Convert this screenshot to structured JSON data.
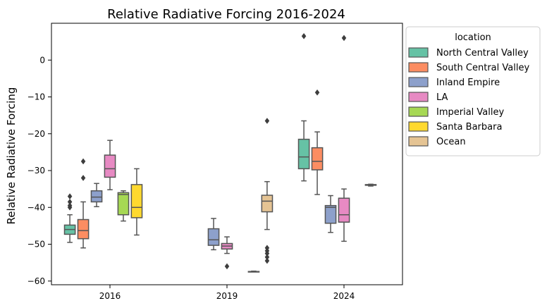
{
  "chart_data": {
    "type": "box",
    "title": "Relative Radiative Forcing 2016-2024",
    "xlabel": "",
    "ylabel": "Relative Radiative Forcing",
    "ylim": [
      -61,
      10
    ],
    "yticks": [
      0,
      -10,
      -20,
      -30,
      -40,
      -50,
      -60
    ],
    "ytick_labels": [
      "0",
      "−10",
      "−20",
      "−30",
      "−40",
      "−50",
      "−60"
    ],
    "categories": [
      "2016",
      "2019",
      "2024"
    ],
    "legend": {
      "title": "location",
      "placement": "outside-upper-right"
    },
    "series": [
      {
        "name": "North Central Valley",
        "color": "#66c2a5",
        "boxes": [
          {
            "category": "2016",
            "whislo": -49.5,
            "q1": -47.3,
            "med": -46.0,
            "q3": -44.8,
            "whishi": -42.0,
            "fliers": [
              -37.0,
              -38.5,
              -39.5,
              -40.0
            ]
          },
          null,
          {
            "category": "2024",
            "whislo": -32.8,
            "q1": -29.5,
            "med": -26.3,
            "q3": -21.5,
            "whishi": -16.5,
            "fliers": [
              6.5
            ]
          }
        ]
      },
      {
        "name": "South Central Valley",
        "color": "#fc8d62",
        "boxes": [
          {
            "category": "2016",
            "whislo": -51.0,
            "q1": -48.5,
            "med": -46.3,
            "q3": -43.3,
            "whishi": -38.5,
            "fliers": [
              -27.5,
              -32.0
            ]
          },
          null,
          {
            "category": "2024",
            "whislo": -36.5,
            "q1": -29.8,
            "med": -27.5,
            "q3": -23.8,
            "whishi": -19.5,
            "fliers": [
              -8.8
            ]
          }
        ]
      },
      {
        "name": "Inland Empire",
        "color": "#8da0cb",
        "boxes": [
          {
            "category": "2016",
            "whislo": -39.8,
            "q1": -38.5,
            "med": -37.2,
            "q3": -35.5,
            "whishi": -33.5,
            "fliers": []
          },
          {
            "category": "2019",
            "whislo": -51.5,
            "q1": -50.3,
            "med": -48.8,
            "q3": -45.8,
            "whishi": -43.0,
            "fliers": []
          },
          {
            "category": "2024",
            "whislo": -46.8,
            "q1": -44.3,
            "med": -40.0,
            "q3": -39.5,
            "whishi": -36.8,
            "fliers": []
          }
        ]
      },
      {
        "name": "LA",
        "color": "#e78ac3",
        "boxes": [
          {
            "category": "2016",
            "whislo": -35.2,
            "q1": -31.8,
            "med": -29.5,
            "q3": -25.8,
            "whishi": -21.8,
            "fliers": []
          },
          {
            "category": "2019",
            "whislo": -52.5,
            "q1": -51.3,
            "med": -50.5,
            "q3": -49.8,
            "whishi": -48.0,
            "fliers": [
              -56.0
            ]
          },
          {
            "category": "2024",
            "whislo": -49.2,
            "q1": -44.0,
            "med": -42.0,
            "q3": -37.5,
            "whishi": -35.0,
            "fliers": [
              6.0
            ]
          }
        ]
      },
      {
        "name": "Imperial Valley",
        "color": "#a6d854",
        "boxes": [
          {
            "category": "2016",
            "whislo": -43.7,
            "q1": -42.0,
            "med": -36.5,
            "q3": -36.0,
            "whishi": -35.5,
            "fliers": []
          },
          null,
          null
        ]
      },
      {
        "name": "Santa Barbara",
        "color": "#ffd92f",
        "boxes": [
          {
            "category": "2016",
            "whislo": -47.5,
            "q1": -42.8,
            "med": -40.0,
            "q3": -33.8,
            "whishi": -29.5,
            "fliers": []
          },
          {
            "category": "2019",
            "whislo": -57.5,
            "q1": -57.5,
            "med": -57.5,
            "q3": -57.4,
            "whishi": -57.3,
            "fliers": []
          },
          {
            "category": "2024",
            "whislo": -34.2,
            "q1": -34.0,
            "med": -33.9,
            "q3": -33.8,
            "whishi": -33.7,
            "fliers": []
          }
        ]
      },
      {
        "name": "Ocean",
        "color": "#e5c494",
        "boxes": [
          null,
          {
            "category": "2019",
            "whislo": -46.0,
            "q1": -41.2,
            "med": -38.3,
            "q3": -36.7,
            "whishi": -33.0,
            "fliers": [
              -16.5,
              -51.0,
              -51.8,
              -52.5,
              -53.5,
              -54.5
            ]
          },
          null
        ]
      }
    ]
  }
}
